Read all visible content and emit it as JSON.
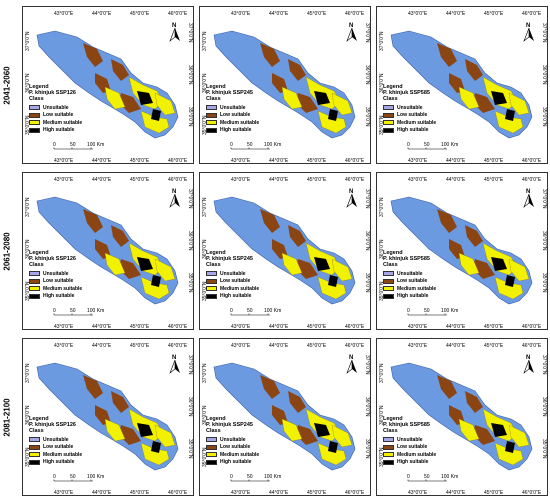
{
  "rows": [
    {
      "period": "2041-2060",
      "panels": [
        {
          "legend_title": "Legend",
          "species": "P. khinjuk SSP126",
          "class_label": "Class"
        },
        {
          "legend_title": "Legend",
          "species": "P. khinjuk SSP245",
          "class_label": "Class"
        },
        {
          "legend_title": "Legend",
          "species": "P. khinjuk SSP585",
          "class_label": "Class"
        }
      ]
    },
    {
      "period": "2061-2080",
      "panels": [
        {
          "legend_title": "Legend",
          "species": "P. khinjuk SSP126",
          "class_label": "Class"
        },
        {
          "legend_title": "Legend",
          "species": "P. khinjuk SSP245",
          "class_label": "Class"
        },
        {
          "legend_title": "Legend",
          "species": "P. khinjuk SSP585",
          "class_label": "Class"
        }
      ]
    },
    {
      "period": "2081-2100",
      "panels": [
        {
          "legend_title": "Legend",
          "species": "P. khinjuk SSP126",
          "class_label": "Class"
        },
        {
          "legend_title": "Legend",
          "species": "P. khinjuk SSP245",
          "class_label": "Class"
        },
        {
          "legend_title": "Legend",
          "species": "P. khinjuk SSP585",
          "class_label": "Class"
        }
      ]
    }
  ],
  "legend_classes": [
    {
      "label": "Unsuitable",
      "color": "#a6a6e8"
    },
    {
      "label": "Low suitable",
      "color": "#8b4513"
    },
    {
      "label": "Medium suitable",
      "color": "#f2f200"
    },
    {
      "label": "High suitable",
      "color": "#000000"
    }
  ],
  "map_fill_color": "#6c9ae0",
  "lon_ticks": [
    "43°0'0\"E",
    "44°0'0\"E",
    "45°0'0\"E",
    "46°0'0\"E"
  ],
  "lat_ticks_left": [
    "37°0'0\"N",
    "36°0'0\"N",
    "35°0'0\"N"
  ],
  "lat_ticks_right": [
    "37°0'0\"N",
    "36°0'0\"N",
    "35°0'0\"N"
  ],
  "scale_bar": {
    "labels": [
      "0",
      "50",
      "100 Km"
    ]
  },
  "north_arrow": {
    "label": "N"
  }
}
